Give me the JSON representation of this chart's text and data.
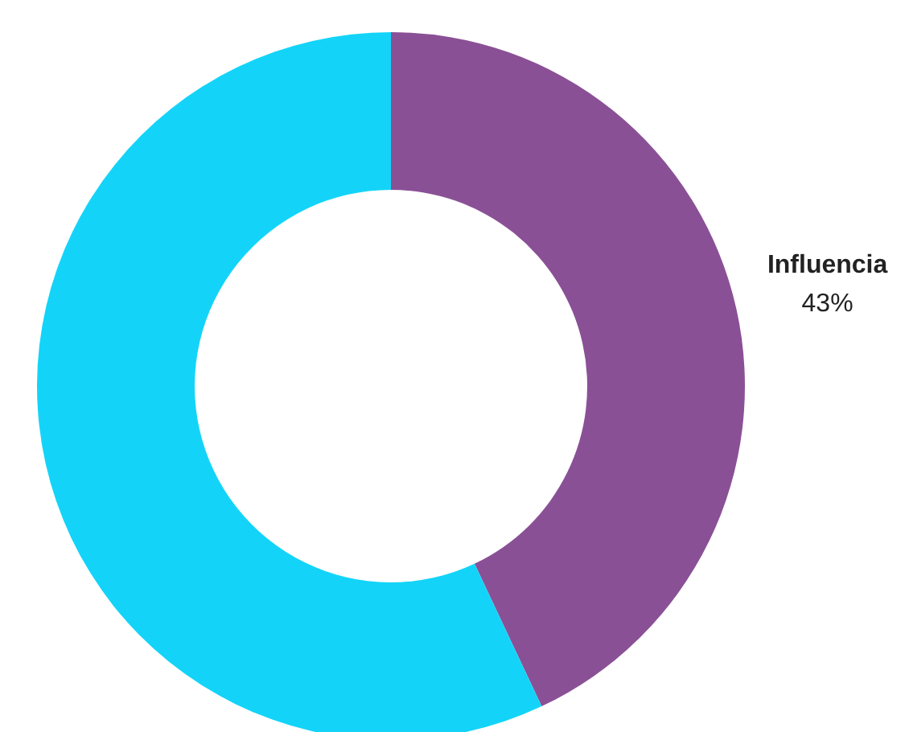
{
  "chart_data": {
    "type": "donut",
    "categories": [
      "Influencia",
      null
    ],
    "values": [
      43,
      57
    ],
    "colors": [
      "#8a5096",
      "#13d4f8"
    ],
    "value_labels": [
      "43%",
      null
    ],
    "legend": false
  }
}
